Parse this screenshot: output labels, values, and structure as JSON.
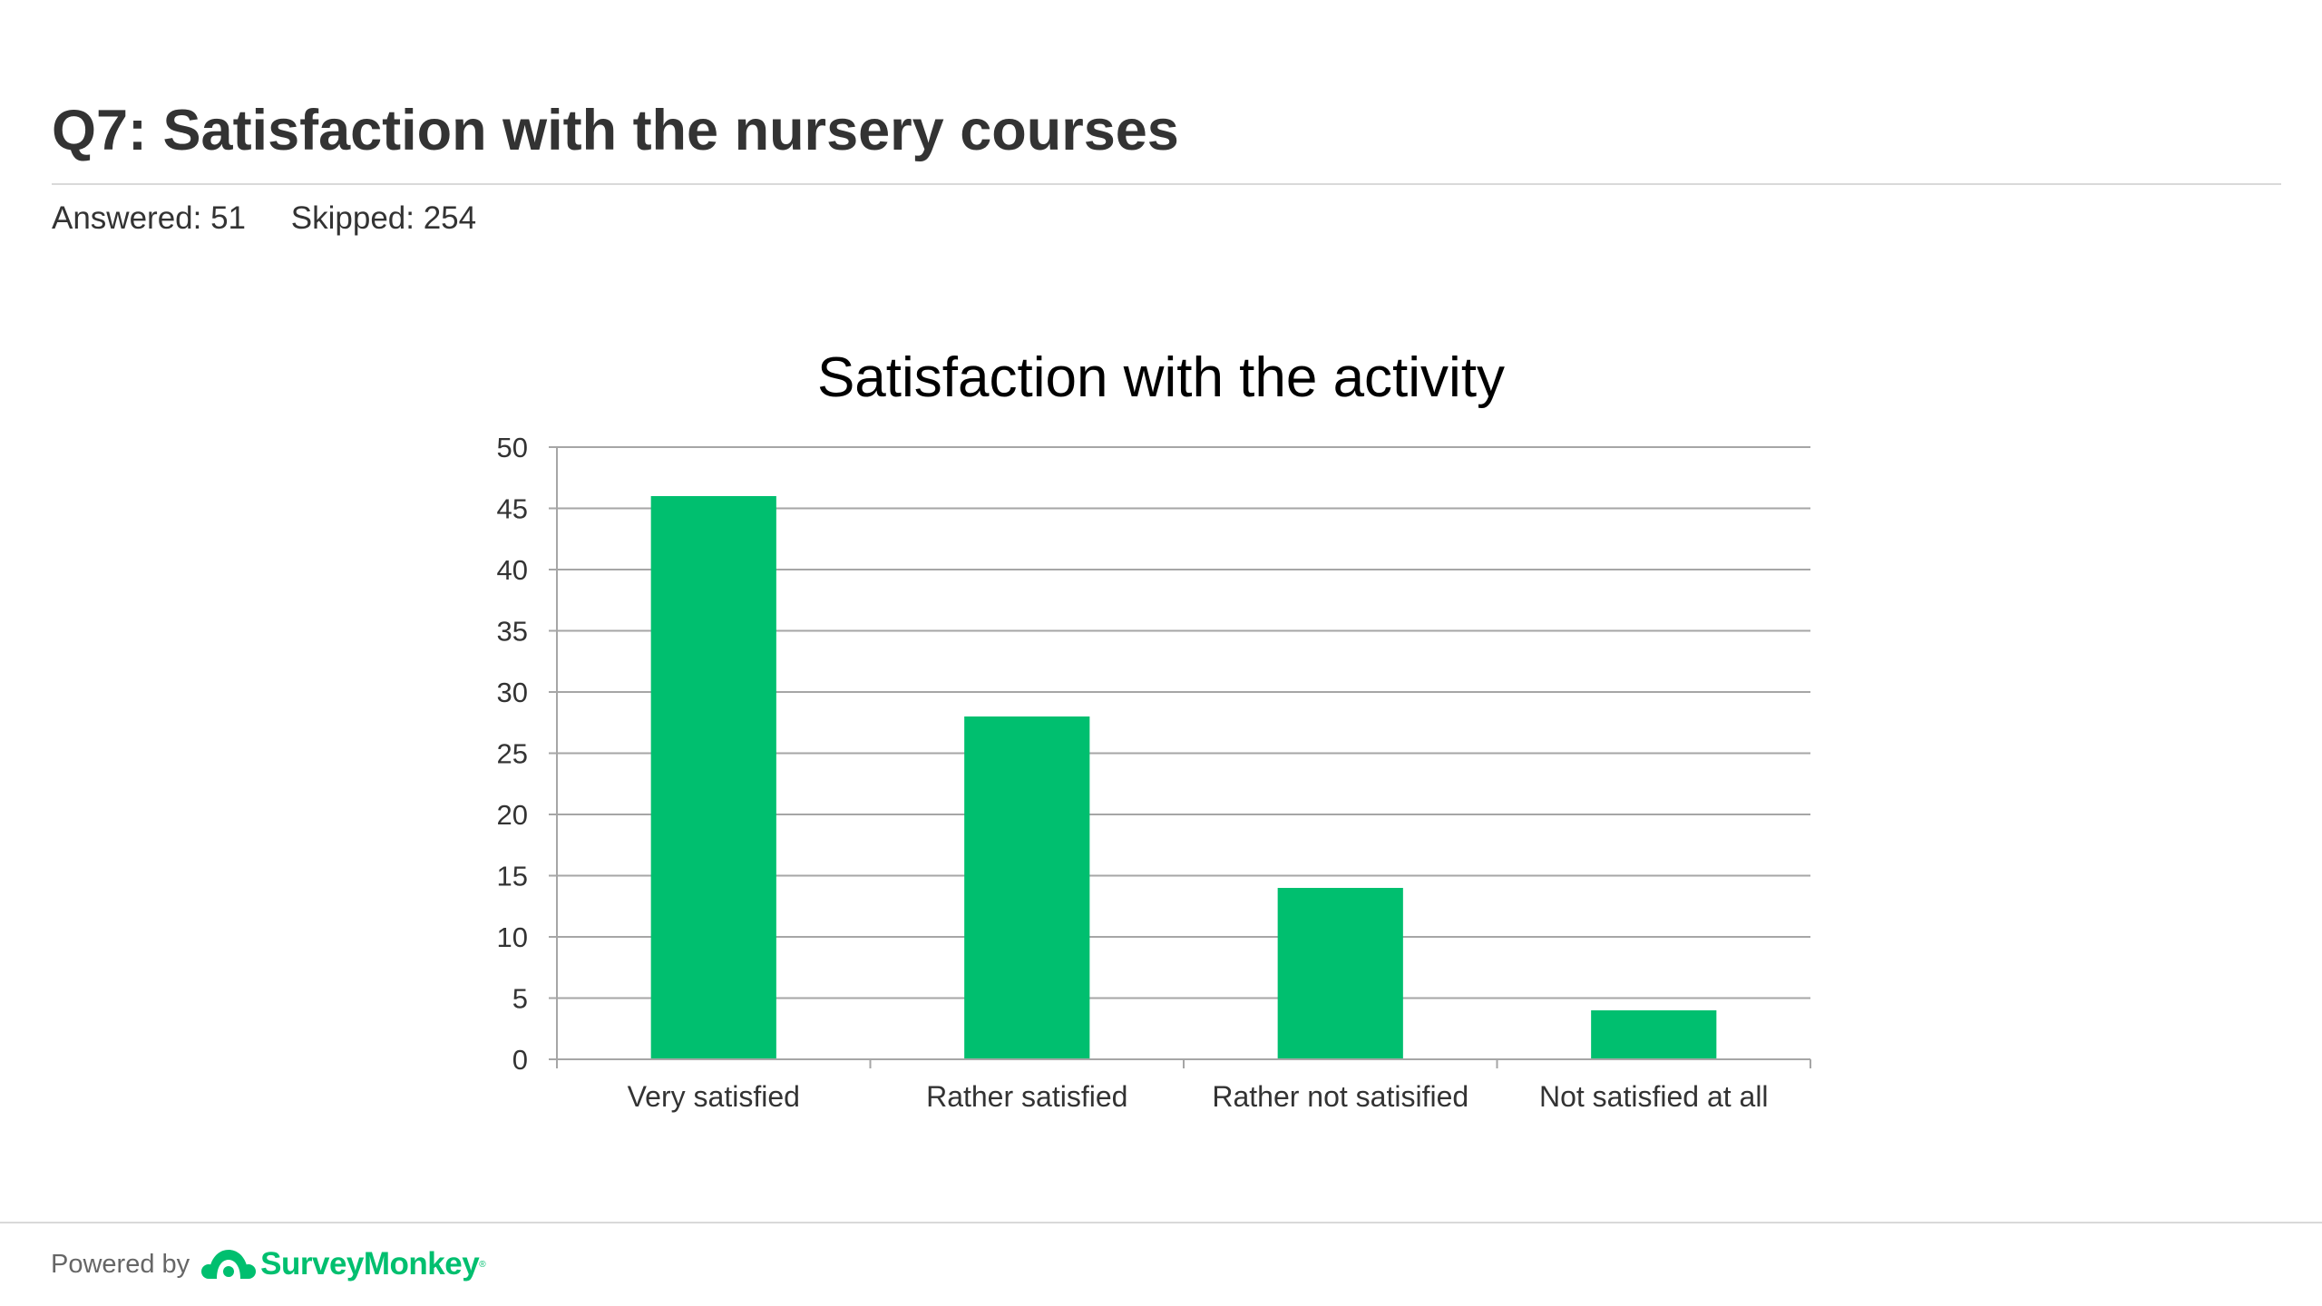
{
  "question": {
    "title": "Q7: Satisfaction with the nursery courses",
    "answered": "Answered: 51",
    "skipped": "Skipped: 254"
  },
  "chart_data": {
    "type": "bar",
    "title": "Satisfaction with the activity",
    "categories": [
      "Very satisfied",
      "Rather satisfied",
      "Rather not satisified",
      "Not satisfied at all"
    ],
    "values": [
      46,
      28,
      14,
      4
    ],
    "ylim": [
      0,
      50
    ],
    "yticks": [
      0,
      5,
      10,
      15,
      20,
      25,
      30,
      35,
      40,
      45,
      50
    ],
    "xlabel": "",
    "ylabel": "",
    "grid": true,
    "legend": "none",
    "bar_color": "#00bf6f"
  },
  "footer": {
    "powered_by": "Powered by",
    "brand_name": "SurveyMonkey",
    "brand_mark": "®",
    "brand_icon": "surveymonkey-logo-icon",
    "brand_color": "#00bf6f"
  }
}
